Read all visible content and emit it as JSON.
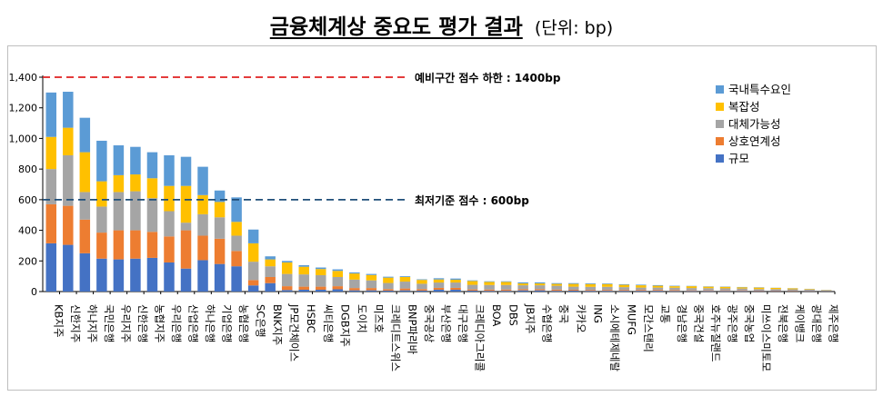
{
  "title": "금융체계상 중요도 평가 결과",
  "unit": "(단위: bp)",
  "chart_data": {
    "type": "bar",
    "stacked": true,
    "ylim": [
      0,
      1400
    ],
    "yticks": [
      "0",
      "200",
      "400",
      "600",
      "800",
      "1,000",
      "1,200",
      "1,400"
    ],
    "grid": false,
    "legend_position": "top-right",
    "categories": [
      "KB지주",
      "신한지주",
      "하나지주",
      "국민은행",
      "우리지주",
      "신한은행",
      "농협지주",
      "우리은행",
      "산업은행",
      "하나은행",
      "기업은행",
      "농협은행",
      "SC은행",
      "BNK지주",
      "JP모건체이스",
      "HSBC",
      "씨티은행",
      "DGB지주",
      "도이치",
      "미즈호",
      "크레디트스위스",
      "BNP파리바",
      "중국공상",
      "부산은행",
      "대구은행",
      "크레디아그리콜",
      "BOA",
      "DBS",
      "JB지주",
      "수협은행",
      "중국",
      "카카오",
      "ING",
      "소시에테제네랄",
      "MUFG",
      "모간스탠리",
      "교통",
      "경남은행",
      "중국건설",
      "호주뉴질랜드",
      "광주은행",
      "중국농업",
      "미쓰이스미토모",
      "전북은행",
      "케이뱅크",
      "광대은행",
      "제주은행"
    ],
    "series": [
      {
        "name": "규모",
        "color": "#4472C4",
        "values": [
          315,
          305,
          250,
          215,
          210,
          215,
          220,
          190,
          150,
          205,
          180,
          165,
          40,
          55,
          10,
          12,
          12,
          15,
          8,
          8,
          6,
          8,
          6,
          12,
          12,
          6,
          5,
          5,
          8,
          8,
          5,
          6,
          5,
          5,
          5,
          5,
          5,
          4,
          4,
          4,
          4,
          4,
          3,
          3,
          2,
          2,
          2
        ]
      },
      {
        "name": "상호연계성",
        "color": "#ED7D31",
        "values": [
          255,
          255,
          220,
          170,
          190,
          185,
          170,
          170,
          250,
          160,
          165,
          100,
          35,
          40,
          25,
          20,
          20,
          20,
          15,
          15,
          10,
          12,
          10,
          12,
          12,
          8,
          8,
          8,
          8,
          8,
          8,
          6,
          6,
          6,
          6,
          6,
          6,
          6,
          4,
          4,
          4,
          4,
          3,
          3,
          3,
          2,
          1
        ]
      },
      {
        "name": "대체가능성",
        "color": "#A5A5A5",
        "values": [
          230,
          330,
          180,
          170,
          250,
          255,
          220,
          165,
          50,
          140,
          140,
          100,
          120,
          70,
          80,
          80,
          75,
          60,
          55,
          50,
          40,
          45,
          35,
          35,
          35,
          30,
          30,
          30,
          25,
          25,
          25,
          20,
          20,
          20,
          18,
          15,
          15,
          15,
          15,
          14,
          13,
          12,
          10,
          10,
          10,
          9,
          5
        ]
      },
      {
        "name": "복잡성",
        "color": "#FFC000",
        "values": [
          210,
          180,
          260,
          165,
          110,
          110,
          130,
          165,
          240,
          125,
          100,
          90,
          120,
          45,
          75,
          50,
          40,
          40,
          40,
          35,
          35,
          30,
          25,
          20,
          18,
          25,
          20,
          20,
          12,
          12,
          12,
          18,
          18,
          18,
          15,
          15,
          12,
          10,
          12,
          10,
          10,
          8,
          10,
          8,
          6,
          4,
          2
        ]
      },
      {
        "name": "국내특수요인",
        "color": "#5B9BD5",
        "values": [
          290,
          235,
          225,
          265,
          195,
          180,
          170,
          200,
          190,
          185,
          75,
          160,
          90,
          20,
          10,
          10,
          10,
          10,
          7,
          7,
          6,
          5,
          4,
          8,
          8,
          4,
          4,
          4,
          7,
          7,
          5,
          5,
          5,
          4,
          4,
          4,
          4,
          3,
          2,
          2,
          2,
          2,
          2,
          1,
          1,
          1,
          1
        ]
      }
    ],
    "reference_lines": [
      {
        "value": 1400,
        "label": "예비구간 점수 하한 : 1400bp",
        "color": "#E02020"
      },
      {
        "value": 600,
        "label": "최저기준 점수 : 600bp",
        "color": "#1F4E79"
      }
    ]
  }
}
